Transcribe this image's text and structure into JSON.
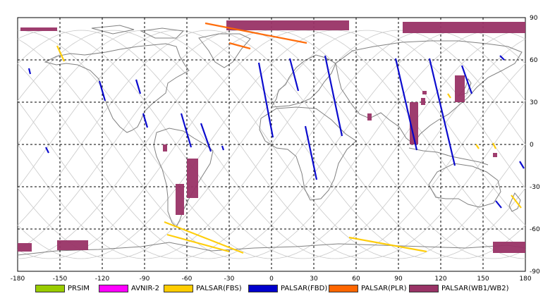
{
  "map": {
    "lon_ticks": [
      "-180",
      "-150",
      "-120",
      "-90",
      "-60",
      "-30",
      "0",
      "30",
      "60",
      "90",
      "120",
      "150",
      "180"
    ],
    "lat_ticks": [
      "90",
      "60",
      "30",
      "0",
      "-30",
      "-60",
      "-90"
    ],
    "lon_range": [
      -180,
      180
    ],
    "lat_range": [
      -90,
      90
    ],
    "grid": "dashed",
    "colors": {
      "PRSIM": "#99cc00",
      "AVNIR-2": "#ff00ff",
      "PALSAR(FBS)": "#ffcc00",
      "PALSAR(FBD)": "#0000cc",
      "PALSAR(PLR)": "#ff6600",
      "PALSAR(WB1/WB2)": "#993366",
      "orbit": "#c8c8c8",
      "coast": "#808080"
    }
  },
  "legend": [
    {
      "label": "PRSIM",
      "color": "#99cc00"
    },
    {
      "label": "AVNIR-2",
      "color": "#ff00ff"
    },
    {
      "label": "PALSAR(FBS)",
      "color": "#ffcc00"
    },
    {
      "label": "PALSAR(FBD)",
      "color": "#0000cc"
    },
    {
      "label": "PALSAR(PLR)",
      "color": "#ff6600"
    },
    {
      "label": "PALSAR(WB1/WB2)",
      "color": "#993366"
    }
  ],
  "acquisitions": {
    "wb": [
      {
        "lon": [
          -178,
          -152
        ],
        "lat": [
          81,
          83
        ]
      },
      {
        "lon": [
          -32,
          55
        ],
        "lat": [
          81,
          88
        ]
      },
      {
        "lon": [
          93,
          180
        ],
        "lat": [
          79,
          87
        ]
      },
      {
        "lon": [
          -180,
          -170
        ],
        "lat": [
          -76,
          -70
        ]
      },
      {
        "lon": [
          -152,
          -130
        ],
        "lat": [
          -75,
          -68
        ]
      },
      {
        "lon": [
          157,
          180
        ],
        "lat": [
          -77,
          -69
        ]
      },
      {
        "lon": [
          -52,
          -60
        ],
        "lat": [
          -38,
          -10
        ]
      },
      {
        "lon": [
          -62,
          -68
        ],
        "lat": [
          -50,
          -28
        ]
      },
      {
        "lon": [
          -77,
          -74
        ],
        "lat": [
          -5,
          0
        ]
      },
      {
        "lon": [
          98,
          104
        ],
        "lat": [
          0,
          30
        ]
      },
      {
        "lon": [
          130,
          137
        ],
        "lat": [
          30,
          49
        ]
      },
      {
        "lon": [
          106,
          108
        ],
        "lat": [
          28,
          33
        ]
      },
      {
        "lon": [
          68,
          71
        ],
        "lat": [
          17,
          22
        ]
      },
      {
        "lon": [
          107,
          110
        ],
        "lat": [
          36,
          38
        ]
      },
      {
        "lon": [
          157,
          160
        ],
        "lat": [
          -9,
          -6
        ]
      }
    ],
    "fbd": [
      {
        "lon": [
          -172,
          -171
        ],
        "lat": [
          50,
          54
        ]
      },
      {
        "lon": [
          -122,
          -118
        ],
        "lat": [
          31,
          45
        ]
      },
      {
        "lon": [
          -96,
          -93
        ],
        "lat": [
          36,
          46
        ]
      },
      {
        "lon": [
          -91,
          -88
        ],
        "lat": [
          12,
          22
        ]
      },
      {
        "lon": [
          -64,
          -57
        ],
        "lat": [
          -2,
          22
        ]
      },
      {
        "lon": [
          -50,
          -43
        ],
        "lat": [
          -5,
          15
        ]
      },
      {
        "lon": [
          -35,
          -34
        ],
        "lat": [
          -4,
          -1
        ]
      },
      {
        "lon": [
          -9,
          1
        ],
        "lat": [
          5,
          58
        ]
      },
      {
        "lon": [
          13,
          19
        ],
        "lat": [
          38,
          61
        ]
      },
      {
        "lon": [
          24,
          32
        ],
        "lat": [
          -25,
          13
        ]
      },
      {
        "lon": [
          38,
          50
        ],
        "lat": [
          6,
          63
        ]
      },
      {
        "lon": [
          88,
          103
        ],
        "lat": [
          -4,
          61
        ]
      },
      {
        "lon": [
          112,
          130
        ],
        "lat": [
          -15,
          61
        ]
      },
      {
        "lon": [
          135,
          142
        ],
        "lat": [
          36,
          56
        ]
      },
      {
        "lon": [
          162,
          165
        ],
        "lat": [
          60,
          63
        ]
      },
      {
        "lon": [
          -160,
          -158
        ],
        "lat": [
          -6,
          -2
        ]
      },
      {
        "lon": [
          159,
          163
        ],
        "lat": [
          -45,
          -40
        ]
      },
      {
        "lon": [
          176,
          179
        ],
        "lat": [
          -17,
          -12
        ]
      }
    ],
    "fbs": [
      {
        "lon": [
          -152,
          -147
        ],
        "lat": [
          59,
          70
        ]
      },
      {
        "lon": [
          -76,
          -20
        ],
        "lat": [
          -77,
          -55
        ]
      },
      {
        "lon": [
          -74,
          -30
        ],
        "lat": [
          -76,
          -64
        ]
      },
      {
        "lon": [
          55,
          110
        ],
        "lat": [
          -76,
          -66
        ]
      },
      {
        "lon": [
          125,
          127
        ],
        "lat": [
          33,
          36
        ]
      },
      {
        "lon": [
          145,
          147
        ],
        "lat": [
          -3,
          0
        ]
      },
      {
        "lon": [
          157,
          159
        ],
        "lat": [
          -3,
          1
        ]
      },
      {
        "lon": [
          170,
          177
        ],
        "lat": [
          -45,
          -36
        ]
      }
    ],
    "plr": [
      {
        "lon": [
          -47,
          25
        ],
        "lat": [
          72,
          86
        ]
      },
      {
        "lon": [
          -30,
          -15
        ],
        "lat": [
          68,
          72
        ]
      }
    ]
  }
}
